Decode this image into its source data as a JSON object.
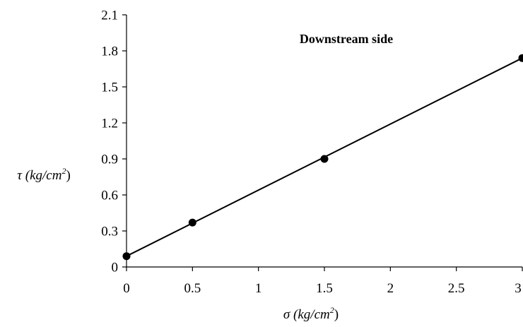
{
  "chart_data": {
    "type": "scatter",
    "title": "",
    "annotation": "Downstream side",
    "xlabel": {
      "symbol": "σ",
      "unit_base": " (kg/cm",
      "unit_exp": "2",
      "unit_close": ")"
    },
    "ylabel": {
      "symbol": "τ",
      "unit_base": " (kg/cm",
      "unit_exp": "2",
      "unit_close": ")"
    },
    "xlim": [
      0,
      3
    ],
    "ylim": [
      0,
      2.1
    ],
    "x_ticks": [
      {
        "value": 0,
        "label": "0"
      },
      {
        "value": 0.5,
        "label": "0.5"
      },
      {
        "value": 1,
        "label": "1"
      },
      {
        "value": 1.5,
        "label": "1.5"
      },
      {
        "value": 2,
        "label": "2"
      },
      {
        "value": 2.5,
        "label": "2.5"
      },
      {
        "value": 3,
        "label": "3"
      }
    ],
    "y_ticks": [
      {
        "value": 0,
        "label": "0"
      },
      {
        "value": 0.3,
        "label": "0.3"
      },
      {
        "value": 0.6,
        "label": "0.6"
      },
      {
        "value": 0.9,
        "label": "0.9"
      },
      {
        "value": 1.2,
        "label": "1.2"
      },
      {
        "value": 1.5,
        "label": "1.5"
      },
      {
        "value": 1.8,
        "label": "1.8"
      },
      {
        "value": 2.1,
        "label": "2.1"
      }
    ],
    "grid": false,
    "legend": "none",
    "series": [
      {
        "marker_color": "#000000",
        "points": [
          {
            "x": 0,
            "y": 0.09
          },
          {
            "x": 0.5,
            "y": 0.37
          },
          {
            "x": 1.5,
            "y": 0.9
          },
          {
            "x": 3,
            "y": 1.74
          }
        ]
      }
    ],
    "trendline": {
      "color": "#000000",
      "from": {
        "x": 0,
        "y": 0.09
      },
      "to": {
        "x": 3,
        "y": 1.74
      }
    }
  }
}
